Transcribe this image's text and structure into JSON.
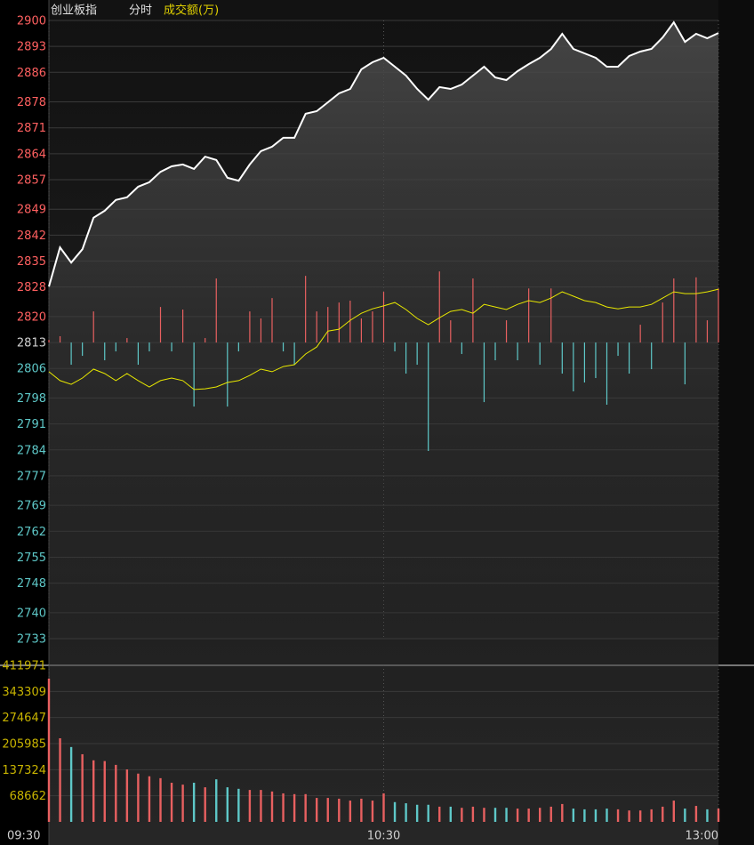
{
  "chart_data": [
    {
      "type": "line",
      "title": "创业板指",
      "subtitle": "分时",
      "grid": true,
      "x": [
        0,
        2,
        4,
        6,
        8,
        10,
        12,
        14,
        16,
        18,
        20,
        22,
        24,
        26,
        28,
        30,
        32,
        34,
        36,
        38,
        40,
        42,
        44,
        46,
        48,
        50,
        52,
        54,
        56,
        58,
        60,
        62,
        64,
        66,
        68,
        70,
        72,
        74,
        76,
        78,
        80,
        82,
        84,
        86,
        88,
        90,
        92,
        94,
        96,
        98,
        100,
        102,
        104,
        106,
        108,
        110,
        112,
        114,
        116,
        118,
        120
      ],
      "xlim": [
        0,
        120
      ],
      "xticks": [
        {
          "value": 0,
          "label": "09:30"
        },
        {
          "value": 60,
          "label": "10:30"
        },
        {
          "value": 120,
          "label": "13:00"
        }
      ],
      "ylim": [
        2733,
        2900
      ],
      "yticks": [
        2900,
        2893,
        2886,
        2878,
        2871,
        2864,
        2857,
        2849,
        2842,
        2835,
        2828,
        2820,
        2813,
        2806,
        2798,
        2791,
        2784,
        2777,
        2769,
        2762,
        2755,
        2748,
        2740,
        2733
      ],
      "ytick_colors": [
        "#ff6060",
        "#d0d0d0",
        "#5ec8c8"
      ],
      "series": [
        {
          "type": "line",
          "color": "#ffffff",
          "fill": true,
          "values": [
            2828.1,
            2838.7,
            2834.6,
            2838.2,
            2846.7,
            2848.6,
            2851.5,
            2852.2,
            2855.1,
            2856.3,
            2859.1,
            2860.6,
            2861.1,
            2859.9,
            2863.2,
            2862.3,
            2857.5,
            2856.7,
            2861.1,
            2864.7,
            2865.9,
            2868.3,
            2868.3,
            2874.8,
            2875.5,
            2877.9,
            2880.3,
            2881.5,
            2886.8,
            2888.7,
            2889.9,
            2887.5,
            2885.1,
            2881.5,
            2878.6,
            2882.0,
            2881.5,
            2882.7,
            2885.1,
            2887.5,
            2884.6,
            2883.9,
            2886.3,
            2888.2,
            2889.9,
            2892.3,
            2896.4,
            2892.3,
            2891.1,
            2889.9,
            2887.5,
            2887.5,
            2890.4,
            2891.6,
            2892.3,
            2895.4,
            2899.5,
            2894.2,
            2896.4,
            2895.2,
            2896.6
          ]
        },
        {
          "type": "line",
          "color": "#e8e800",
          "fill": false,
          "values": [
            2805.1,
            2802.7,
            2801.7,
            2803.4,
            2805.8,
            2804.6,
            2802.7,
            2804.6,
            2802.7,
            2801.0,
            2802.7,
            2803.4,
            2802.7,
            2800.3,
            2800.5,
            2801.0,
            2802.2,
            2802.7,
            2804.1,
            2805.8,
            2805.1,
            2806.5,
            2807.0,
            2809.9,
            2811.8,
            2816.1,
            2816.6,
            2819.0,
            2820.9,
            2822.1,
            2822.9,
            2823.8,
            2821.9,
            2819.5,
            2817.8,
            2819.7,
            2821.4,
            2821.9,
            2820.9,
            2823.3,
            2822.6,
            2821.9,
            2823.3,
            2824.3,
            2823.8,
            2825.0,
            2826.7,
            2825.5,
            2824.3,
            2823.8,
            2822.6,
            2822.1,
            2822.6,
            2822.6,
            2823.3,
            2825.0,
            2826.7,
            2826.2,
            2826.2,
            2826.7,
            2827.4
          ]
        },
        {
          "type": "bar",
          "color": "#e86060",
          "down_color": "#5ec8c8",
          "values": [
            2813.7,
            2814.7,
            2807.0,
            2809.4,
            2821.4,
            2808.2,
            2810.6,
            2814.2,
            2807.0,
            2810.6,
            2822.6,
            2810.6,
            2821.9,
            2795.7,
            2814.2,
            2830.3,
            2795.7,
            2810.6,
            2821.4,
            2819.5,
            2825.0,
            2810.6,
            2807.0,
            2831.0,
            2821.4,
            2822.6,
            2823.8,
            2824.3,
            2819.5,
            2821.4,
            2826.7,
            2810.6,
            2804.6,
            2807.0,
            2783.7,
            2832.2,
            2819.0,
            2809.9,
            2830.3,
            2796.9,
            2808.2,
            2819.0,
            2808.2,
            2827.6,
            2807.0,
            2827.6,
            2804.6,
            2799.8,
            2802.2,
            2803.4,
            2796.2,
            2809.4,
            2804.6,
            2817.8,
            2805.8,
            2823.8,
            2830.3,
            2801.7,
            2830.6,
            2819.0,
            2827.6
          ]
        }
      ]
    },
    {
      "type": "bar",
      "title": "成交额(万)",
      "grid": true,
      "x": [
        0,
        2,
        4,
        6,
        8,
        10,
        12,
        14,
        16,
        18,
        20,
        22,
        24,
        26,
        28,
        30,
        32,
        34,
        36,
        38,
        40,
        42,
        44,
        46,
        48,
        50,
        52,
        54,
        56,
        58,
        60,
        62,
        64,
        66,
        68,
        70,
        72,
        74,
        76,
        78,
        80,
        82,
        84,
        86,
        88,
        90,
        92,
        94,
        96,
        98,
        100,
        102,
        104,
        106,
        108,
        110,
        112,
        114,
        116,
        118,
        120
      ],
      "xlim": [
        0,
        120
      ],
      "xticks": [
        {
          "value": 0,
          "label": "09:30"
        },
        {
          "value": 60,
          "label": "10:30"
        },
        {
          "value": 120,
          "label": "13:00"
        }
      ],
      "ylim": [
        0,
        411971
      ],
      "yticks": [
        411971,
        343309,
        274647,
        205985,
        137324,
        68662
      ],
      "ytick_color": "#c8b400",
      "color": "#e86060",
      "down_color": "#5ec8c8",
      "values": [
        377000,
        220000,
        197000,
        178000,
        162000,
        160000,
        150000,
        138000,
        127000,
        120000,
        115000,
        103000,
        98000,
        103000,
        91000,
        112000,
        91000,
        87000,
        84000,
        84000,
        80000,
        75000,
        73000,
        73000,
        63000,
        63000,
        61000,
        56000,
        61000,
        56000,
        75000,
        52000,
        49000,
        45000,
        45000,
        40000,
        40000,
        37000,
        40000,
        37000,
        37000,
        37000,
        35000,
        35000,
        37000,
        40000,
        47000,
        35000,
        33000,
        33000,
        35000,
        33000,
        30000,
        30000,
        33000,
        40000,
        56000,
        35000,
        42000,
        33000,
        35000
      ]
    }
  ]
}
